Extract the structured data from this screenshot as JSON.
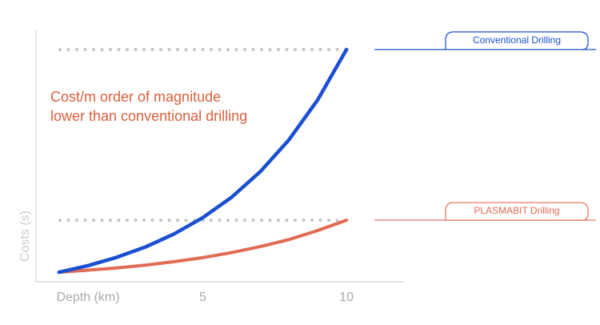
{
  "chart_data": {
    "type": "line",
    "annotation": [
      "Cost/m order of magnitude",
      "lower than conventional drilling"
    ],
    "x_label": "Depth (km)",
    "y_label": "Costs (s)",
    "x": [
      0,
      1,
      2,
      3,
      4,
      5,
      6,
      7,
      8,
      9,
      10
    ],
    "series": [
      {
        "name": "Conventional Drilling",
        "color": "#1a4fd0",
        "values": [
          3.8,
          6.4,
          9.7,
          13.8,
          19.0,
          25.5,
          33.6,
          43.8,
          56.5,
          72.4,
          92.4
        ]
      },
      {
        "name": "PLASMABIT Drilling",
        "color": "#e06c55",
        "values": [
          3.8,
          4.6,
          5.5,
          6.6,
          8.0,
          9.6,
          11.6,
          14.0,
          16.8,
          20.4,
          24.5
        ]
      }
    ],
    "hlines": [
      92.4,
      24.5
    ],
    "xlim": [
      -0.8,
      12
    ],
    "ylim": [
      0,
      100
    ],
    "xticks": [
      5,
      10
    ],
    "annotation_color": "#d9603e"
  }
}
